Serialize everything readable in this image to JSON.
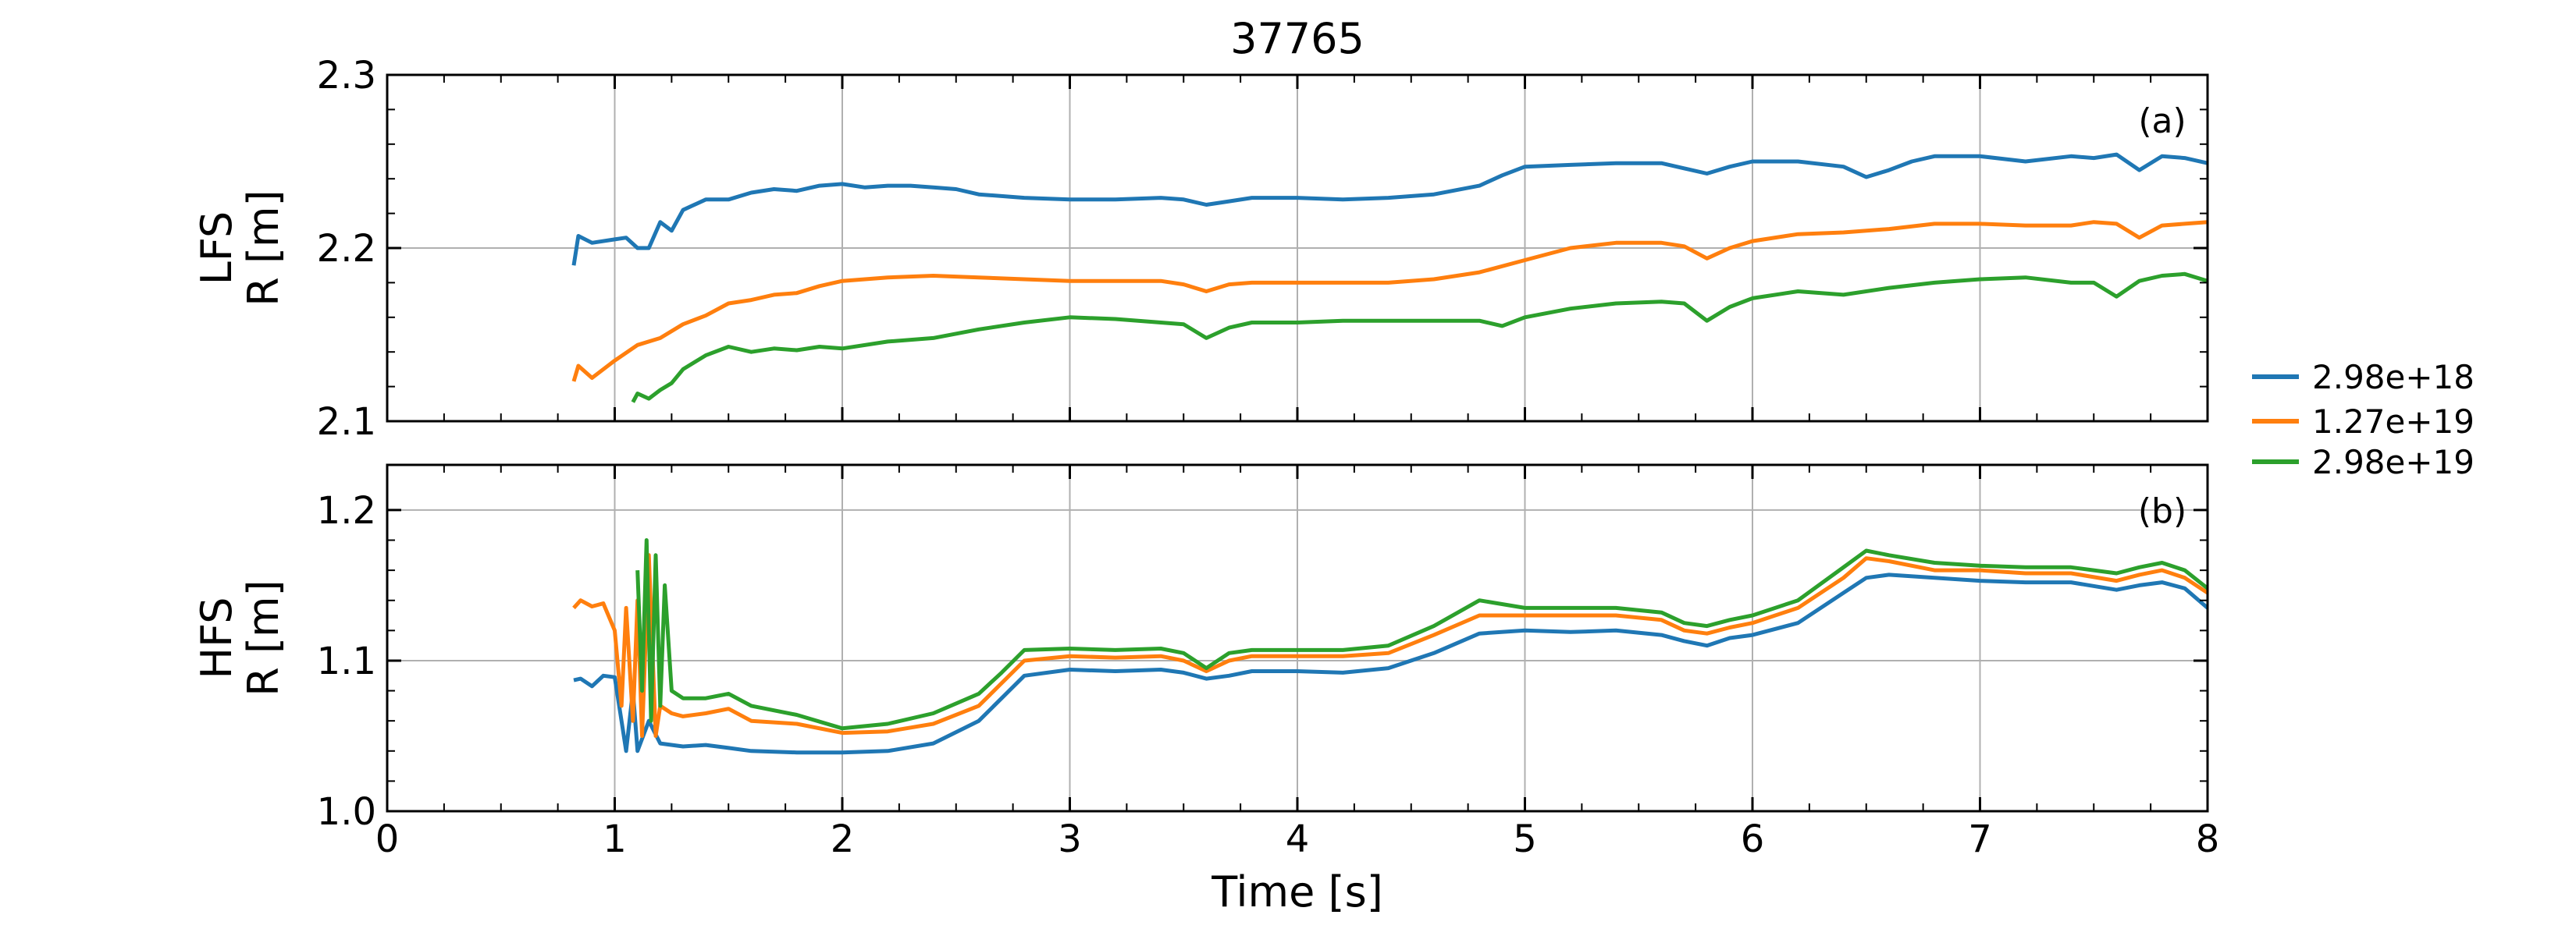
{
  "chart_data": {
    "type": "line",
    "title": "37765",
    "xlabel": "Time [s]",
    "xlim": [
      0,
      8
    ],
    "x_ticks": [
      "0",
      "1",
      "2",
      "3",
      "4",
      "5",
      "6",
      "7",
      "8"
    ],
    "grid": true,
    "legend": {
      "placement": "right",
      "entries": [
        {
          "name": "2.98e+18",
          "color": "#1f77b4"
        },
        {
          "name": "1.27e+19",
          "color": "#ff7f0e"
        },
        {
          "name": "2.98e+19",
          "color": "#2ca02c"
        }
      ]
    },
    "panels": [
      {
        "tag": "(a)",
        "ylabel_line1": "LFS",
        "ylabel_line2": "R [m]",
        "ylim": [
          2.1,
          2.3
        ],
        "y_ticks": [
          "2.1",
          "2.2",
          "2.3"
        ],
        "series": [
          {
            "name": "2.98e+18",
            "color": "#1f77b4",
            "x": [
              0.82,
              0.84,
              0.9,
              1.0,
              1.05,
              1.1,
              1.15,
              1.2,
              1.25,
              1.3,
              1.4,
              1.5,
              1.6,
              1.7,
              1.8,
              1.9,
              2.0,
              2.1,
              2.2,
              2.3,
              2.4,
              2.5,
              2.6,
              2.8,
              3.0,
              3.2,
              3.4,
              3.5,
              3.6,
              3.7,
              3.8,
              4.0,
              4.2,
              4.4,
              4.6,
              4.8,
              4.9,
              5.0,
              5.2,
              5.4,
              5.6,
              5.8,
              5.9,
              6.0,
              6.2,
              6.4,
              6.5,
              6.6,
              6.7,
              6.8,
              7.0,
              7.2,
              7.4,
              7.5,
              7.6,
              7.7,
              7.8,
              7.9,
              8.0
            ],
            "y": [
              2.19,
              2.207,
              2.203,
              2.205,
              2.206,
              2.2,
              2.2,
              2.215,
              2.21,
              2.222,
              2.228,
              2.228,
              2.232,
              2.234,
              2.233,
              2.236,
              2.237,
              2.235,
              2.236,
              2.236,
              2.235,
              2.234,
              2.231,
              2.229,
              2.228,
              2.228,
              2.229,
              2.228,
              2.225,
              2.227,
              2.229,
              2.229,
              2.228,
              2.229,
              2.231,
              2.236,
              2.242,
              2.247,
              2.248,
              2.249,
              2.249,
              2.243,
              2.247,
              2.25,
              2.25,
              2.247,
              2.241,
              2.245,
              2.25,
              2.253,
              2.253,
              2.25,
              2.253,
              2.252,
              2.254,
              2.245,
              2.253,
              2.252,
              2.249
            ]
          },
          {
            "name": "1.27e+19",
            "color": "#ff7f0e",
            "x": [
              0.82,
              0.84,
              0.9,
              1.0,
              1.1,
              1.2,
              1.3,
              1.4,
              1.5,
              1.6,
              1.7,
              1.8,
              1.9,
              2.0,
              2.2,
              2.4,
              2.6,
              2.8,
              3.0,
              3.2,
              3.4,
              3.5,
              3.6,
              3.7,
              3.8,
              4.0,
              4.2,
              4.4,
              4.6,
              4.8,
              5.0,
              5.2,
              5.4,
              5.6,
              5.7,
              5.8,
              5.9,
              6.0,
              6.2,
              6.4,
              6.6,
              6.8,
              7.0,
              7.2,
              7.4,
              7.5,
              7.6,
              7.7,
              7.8,
              7.9,
              8.0
            ],
            "y": [
              2.123,
              2.132,
              2.125,
              2.135,
              2.144,
              2.148,
              2.156,
              2.161,
              2.168,
              2.17,
              2.173,
              2.174,
              2.178,
              2.181,
              2.183,
              2.184,
              2.183,
              2.182,
              2.181,
              2.181,
              2.181,
              2.179,
              2.175,
              2.179,
              2.18,
              2.18,
              2.18,
              2.18,
              2.182,
              2.186,
              2.193,
              2.2,
              2.203,
              2.203,
              2.201,
              2.194,
              2.2,
              2.204,
              2.208,
              2.209,
              2.211,
              2.214,
              2.214,
              2.213,
              2.213,
              2.215,
              2.214,
              2.206,
              2.213,
              2.214,
              2.215
            ]
          },
          {
            "name": "2.98e+19",
            "color": "#2ca02c",
            "x": [
              1.08,
              1.1,
              1.15,
              1.2,
              1.25,
              1.3,
              1.35,
              1.4,
              1.5,
              1.6,
              1.7,
              1.8,
              1.9,
              2.0,
              2.2,
              2.4,
              2.6,
              2.8,
              3.0,
              3.2,
              3.4,
              3.5,
              3.6,
              3.7,
              3.8,
              4.0,
              4.2,
              4.4,
              4.6,
              4.8,
              4.9,
              5.0,
              5.2,
              5.4,
              5.6,
              5.7,
              5.8,
              5.9,
              6.0,
              6.2,
              6.4,
              6.6,
              6.8,
              7.0,
              7.2,
              7.4,
              7.5,
              7.6,
              7.7,
              7.8,
              7.9,
              8.0
            ],
            "y": [
              2.111,
              2.116,
              2.113,
              2.118,
              2.122,
              2.13,
              2.134,
              2.138,
              2.143,
              2.14,
              2.142,
              2.141,
              2.143,
              2.142,
              2.146,
              2.148,
              2.153,
              2.157,
              2.16,
              2.159,
              2.157,
              2.156,
              2.148,
              2.154,
              2.157,
              2.157,
              2.158,
              2.158,
              2.158,
              2.158,
              2.155,
              2.16,
              2.165,
              2.168,
              2.169,
              2.168,
              2.158,
              2.166,
              2.171,
              2.175,
              2.173,
              2.177,
              2.18,
              2.182,
              2.183,
              2.18,
              2.18,
              2.172,
              2.181,
              2.184,
              2.185,
              2.181
            ]
          }
        ]
      },
      {
        "tag": "(b)",
        "ylabel_line1": "HFS",
        "ylabel_line2": "R [m]",
        "ylim": [
          1.0,
          1.23
        ],
        "y_ticks": [
          "1.0",
          "1.1",
          "1.2"
        ],
        "series": [
          {
            "name": "2.98e+18",
            "color": "#1f77b4",
            "x": [
              0.82,
              0.85,
              0.9,
              0.95,
              1.0,
              1.03,
              1.05,
              1.08,
              1.1,
              1.15,
              1.2,
              1.3,
              1.4,
              1.5,
              1.6,
              1.8,
              2.0,
              2.2,
              2.4,
              2.6,
              2.7,
              2.8,
              3.0,
              3.2,
              3.4,
              3.5,
              3.6,
              3.7,
              3.8,
              4.0,
              4.2,
              4.4,
              4.6,
              4.8,
              5.0,
              5.2,
              5.4,
              5.6,
              5.7,
              5.8,
              5.9,
              6.0,
              6.2,
              6.4,
              6.5,
              6.6,
              6.8,
              7.0,
              7.2,
              7.4,
              7.6,
              7.7,
              7.8,
              7.9,
              8.0
            ],
            "y": [
              1.087,
              1.088,
              1.083,
              1.09,
              1.089,
              1.06,
              1.04,
              1.08,
              1.04,
              1.06,
              1.045,
              1.043,
              1.044,
              1.042,
              1.04,
              1.039,
              1.039,
              1.04,
              1.045,
              1.06,
              1.075,
              1.09,
              1.094,
              1.093,
              1.094,
              1.092,
              1.088,
              1.09,
              1.093,
              1.093,
              1.092,
              1.095,
              1.105,
              1.118,
              1.12,
              1.119,
              1.12,
              1.117,
              1.113,
              1.11,
              1.115,
              1.117,
              1.125,
              1.145,
              1.155,
              1.157,
              1.155,
              1.153,
              1.152,
              1.152,
              1.147,
              1.15,
              1.152,
              1.148,
              1.135
            ]
          },
          {
            "name": "1.27e+19",
            "color": "#ff7f0e",
            "x": [
              0.82,
              0.85,
              0.9,
              0.95,
              1.0,
              1.03,
              1.05,
              1.08,
              1.1,
              1.12,
              1.15,
              1.18,
              1.2,
              1.25,
              1.3,
              1.4,
              1.5,
              1.6,
              1.8,
              2.0,
              2.2,
              2.4,
              2.6,
              2.7,
              2.8,
              3.0,
              3.2,
              3.4,
              3.5,
              3.6,
              3.7,
              3.8,
              4.0,
              4.2,
              4.4,
              4.6,
              4.8,
              5.0,
              5.2,
              5.4,
              5.6,
              5.7,
              5.8,
              5.9,
              6.0,
              6.2,
              6.4,
              6.5,
              6.6,
              6.8,
              7.0,
              7.2,
              7.4,
              7.6,
              7.7,
              7.8,
              7.9,
              8.0
            ],
            "y": [
              1.135,
              1.14,
              1.136,
              1.138,
              1.12,
              1.07,
              1.135,
              1.06,
              1.14,
              1.05,
              1.17,
              1.05,
              1.07,
              1.065,
              1.063,
              1.065,
              1.068,
              1.06,
              1.058,
              1.052,
              1.053,
              1.058,
              1.07,
              1.085,
              1.1,
              1.103,
              1.102,
              1.103,
              1.1,
              1.093,
              1.1,
              1.103,
              1.103,
              1.103,
              1.105,
              1.117,
              1.13,
              1.13,
              1.13,
              1.13,
              1.127,
              1.12,
              1.118,
              1.122,
              1.125,
              1.135,
              1.155,
              1.168,
              1.166,
              1.16,
              1.16,
              1.158,
              1.158,
              1.153,
              1.157,
              1.16,
              1.155,
              1.145
            ]
          },
          {
            "name": "2.98e+19",
            "color": "#2ca02c",
            "x": [
              1.1,
              1.12,
              1.14,
              1.16,
              1.18,
              1.2,
              1.22,
              1.25,
              1.3,
              1.4,
              1.5,
              1.6,
              1.8,
              2.0,
              2.2,
              2.4,
              2.6,
              2.7,
              2.8,
              3.0,
              3.2,
              3.4,
              3.5,
              3.6,
              3.7,
              3.8,
              4.0,
              4.2,
              4.4,
              4.6,
              4.8,
              5.0,
              5.2,
              5.4,
              5.6,
              5.7,
              5.8,
              5.9,
              6.0,
              6.2,
              6.4,
              6.5,
              6.6,
              6.8,
              7.0,
              7.2,
              7.4,
              7.6,
              7.7,
              7.8,
              7.9,
              8.0
            ],
            "y": [
              1.16,
              1.08,
              1.18,
              1.06,
              1.17,
              1.07,
              1.15,
              1.08,
              1.075,
              1.075,
              1.078,
              1.07,
              1.064,
              1.055,
              1.058,
              1.065,
              1.078,
              1.092,
              1.107,
              1.108,
              1.107,
              1.108,
              1.105,
              1.095,
              1.105,
              1.107,
              1.107,
              1.107,
              1.11,
              1.123,
              1.14,
              1.135,
              1.135,
              1.135,
              1.132,
              1.125,
              1.123,
              1.127,
              1.13,
              1.14,
              1.162,
              1.173,
              1.17,
              1.165,
              1.163,
              1.162,
              1.162,
              1.158,
              1.162,
              1.165,
              1.16,
              1.148
            ]
          }
        ]
      }
    ]
  }
}
